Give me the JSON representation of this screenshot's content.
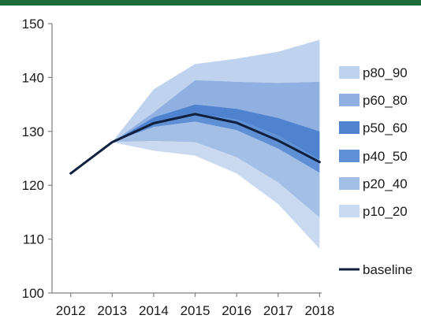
{
  "colors": {
    "top_bar": "#1e6b3a",
    "axis": "#7f7f7f",
    "baseline": "#0f1f3d",
    "p10_20": "#c9d9f0",
    "p20_40": "#a3bfe6",
    "p40_50": "#5f8fd4",
    "p50_60": "#4f83cf",
    "p60_80": "#8fb0e0",
    "p80_90": "#bfd2ee"
  },
  "chart_data": {
    "type": "area",
    "title": "",
    "xlabel": "",
    "ylabel": "",
    "x": [
      2012,
      2013,
      2014,
      2015,
      2016,
      2017,
      2018
    ],
    "x_tick_labels": [
      "2012",
      "2013",
      "2014",
      "2015",
      "2016",
      "2017",
      "2018"
    ],
    "y_tick_labels": [
      "100",
      "110",
      "120",
      "130",
      "140",
      "150"
    ],
    "ylim": [
      100,
      150
    ],
    "grid": false,
    "legend_position": "right",
    "bands": [
      {
        "name": "p80_90",
        "x": [
          2013,
          2014,
          2015,
          2016,
          2017,
          2018
        ],
        "lower": [
          128,
          133.5,
          139.5,
          139.2,
          139,
          139.2
        ],
        "upper": [
          128,
          137.8,
          142.5,
          143.5,
          144.8,
          147
        ]
      },
      {
        "name": "p60_80",
        "x": [
          2013,
          2014,
          2015,
          2016,
          2017,
          2018
        ],
        "lower": [
          128,
          132.6,
          135,
          134.2,
          132.5,
          130
        ],
        "upper": [
          128,
          133.5,
          139.5,
          139.2,
          139,
          139.2
        ]
      },
      {
        "name": "p50_60",
        "x": [
          2013,
          2014,
          2015,
          2016,
          2017,
          2018
        ],
        "lower": [
          128,
          131.7,
          133.2,
          132.2,
          129.2,
          124.7
        ],
        "upper": [
          128,
          132.6,
          135,
          134.2,
          132.5,
          130
        ]
      },
      {
        "name": "p40_50",
        "x": [
          2013,
          2014,
          2015,
          2016,
          2017,
          2018
        ],
        "lower": [
          128,
          130.8,
          131.8,
          130.2,
          126.8,
          122.3
        ],
        "upper": [
          128,
          131.7,
          133.2,
          132.2,
          129.2,
          124.7
        ]
      },
      {
        "name": "p20_40",
        "x": [
          2013,
          2014,
          2015,
          2016,
          2017,
          2018
        ],
        "lower": [
          128,
          128.2,
          128,
          125.2,
          120.5,
          114
        ],
        "upper": [
          128,
          130.8,
          131.8,
          130.2,
          126.8,
          122.3
        ]
      },
      {
        "name": "p10_20",
        "x": [
          2013,
          2014,
          2015,
          2016,
          2017,
          2018
        ],
        "lower": [
          128,
          126.4,
          125.5,
          122.2,
          116.5,
          108.2
        ],
        "upper": [
          128,
          128.2,
          128,
          125.2,
          120.5,
          114
        ]
      }
    ],
    "series": [
      {
        "name": "baseline",
        "x": [
          2012,
          2013,
          2014,
          2015,
          2016,
          2017,
          2018
        ],
        "values": [
          122.2,
          128,
          131.5,
          133.2,
          131.6,
          128.3,
          124.3
        ]
      }
    ],
    "legend": [
      "p80_90",
      "p60_80",
      "p50_60",
      "p40_50",
      "p20_40",
      "p10_20",
      "baseline"
    ]
  }
}
